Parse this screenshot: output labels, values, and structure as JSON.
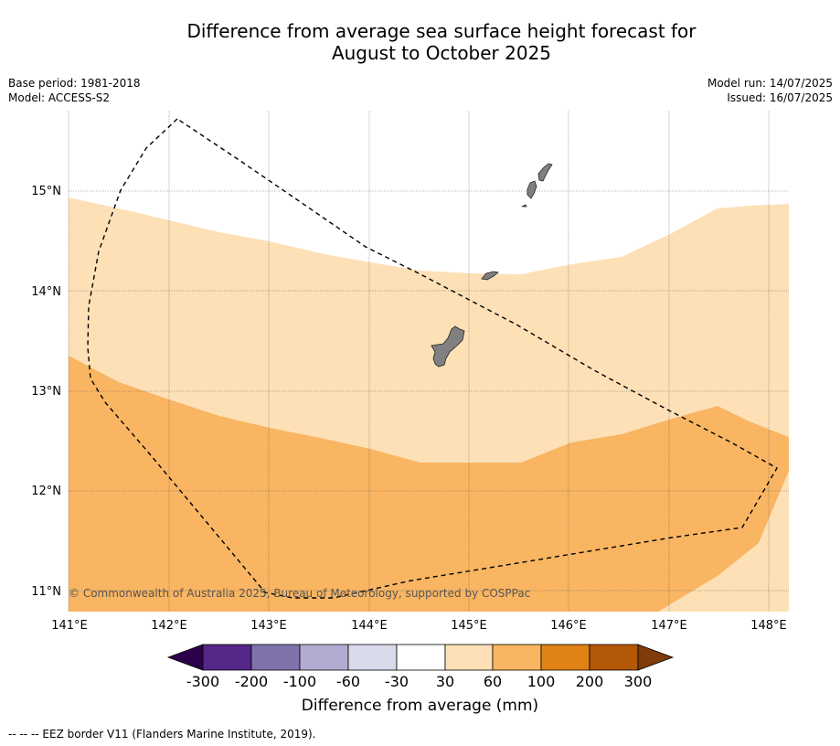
{
  "header": {
    "title_line1": "Difference from average sea surface height forecast for",
    "title_line2": "August to October 2025",
    "base_period": "Base period: 1981-2018",
    "model": "Model: ACCESS-S2",
    "model_run": "Model run: 14/07/2025",
    "issued": "Issued: 16/07/2025"
  },
  "map": {
    "lat_labels": [
      "15°N",
      "14°N",
      "13°N",
      "12°N",
      "11°N"
    ],
    "lon_labels": [
      "141°E",
      "142°E",
      "143°E",
      "144°E",
      "145°E",
      "146°E",
      "147°E",
      "148°E"
    ],
    "copyright": "© Commonwealth of Australia 2025, Bureau of Meteorology, supported by COSPPac",
    "colors": {
      "range_30_60": "#fde0b6",
      "range_60_100": "#f9b562",
      "land": "#808080"
    }
  },
  "colorbar": {
    "ticks": [
      "-300",
      "-200",
      "-100",
      "-60",
      "-30",
      "30",
      "60",
      "100",
      "200",
      "300"
    ],
    "colors": [
      "#2d004b",
      "#542788",
      "#8073ac",
      "#b2abd2",
      "#d8daeb",
      "#ffffff",
      "#fee0b6",
      "#f9b562",
      "#e08214",
      "#b35806",
      "#7f3b08"
    ],
    "title": "Difference from average (mm)"
  },
  "footnote": "--  --  -- EEZ border V11 (Flanders Marine Institute, 2019)."
}
